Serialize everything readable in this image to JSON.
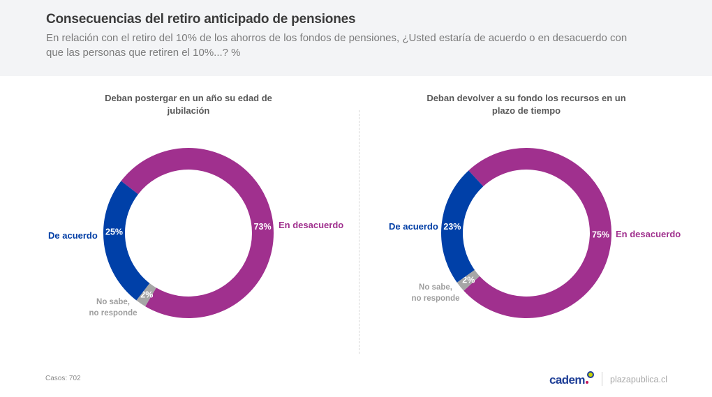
{
  "header": {
    "title": "Consecuencias del retiro anticipado de pensiones",
    "subtitle": "En relación con el retiro del 10% de los ahorros de los fondos de pensiones, ¿Usted estaría de acuerdo o en desacuerdo con que las personas que retiren el 10%...? %"
  },
  "colors": {
    "de_acuerdo": "#0040a8",
    "en_desacuerdo": "#a0308e",
    "no_sabe": "#a6a6a6"
  },
  "chart_data": [
    {
      "type": "pie",
      "variant": "donut",
      "title": "Deban postergar en un año su edad de jubilación",
      "categories": [
        "En desacuerdo",
        "No sabe, no responde",
        "De acuerdo"
      ],
      "values": [
        73,
        2,
        25
      ],
      "value_labels": [
        "73%",
        "2%",
        "25%"
      ],
      "units": "%"
    },
    {
      "type": "pie",
      "variant": "donut",
      "title": "Deban devolver a su fondo los recursos en un plazo de tiempo",
      "categories": [
        "En desacuerdo",
        "No sabe, no responde",
        "De acuerdo"
      ],
      "values": [
        75,
        2,
        23
      ],
      "value_labels": [
        "75%",
        "2%",
        "23%"
      ],
      "units": "%"
    }
  ],
  "labels": {
    "de_acuerdo": "De acuerdo",
    "en_desacuerdo": "En desacuerdo",
    "no_sabe_line1": "No sabe,",
    "no_sabe_line2": "no responde"
  },
  "footer": {
    "cases": "Casos: 702",
    "logo": "cadem",
    "site": "plazapublica.cl"
  }
}
